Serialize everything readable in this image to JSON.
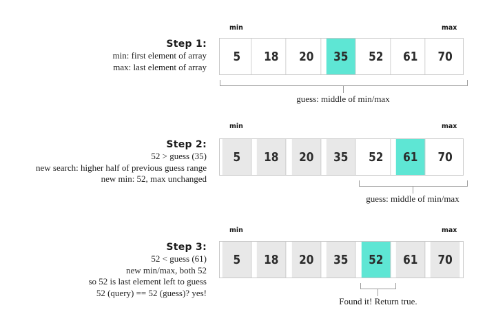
{
  "colors": {
    "guess": "#5ee6d4",
    "greyed": "#e8e8e8",
    "normal": "#ffffff"
  },
  "steps": [
    {
      "title": "Step 1:",
      "lines": [
        "min: first element of array",
        "max: last element of array"
      ],
      "min_label": "min",
      "max_label": "max",
      "values": [
        "5",
        "18",
        "20",
        "35",
        "52",
        "61",
        "70"
      ],
      "states": [
        "normal",
        "normal",
        "normal",
        "guess",
        "normal",
        "normal",
        "normal"
      ],
      "caption": "guess: middle of min/max"
    },
    {
      "title": "Step 2:",
      "lines": [
        "52 > guess (35)",
        "new search: higher half of previous guess range",
        "new min: 52, max unchanged"
      ],
      "min_label": "min",
      "max_label": "max",
      "values": [
        "5",
        "18",
        "20",
        "35",
        "52",
        "61",
        "70"
      ],
      "states": [
        "greyed",
        "greyed",
        "greyed",
        "greyed",
        "normal",
        "guess",
        "normal"
      ],
      "caption": "guess: middle of min/max"
    },
    {
      "title": "Step 3:",
      "lines": [
        "52 < guess (61)",
        "new min/max, both 52",
        "so 52 is last element left to guess",
        "52 (query) == 52 (guess)? yes!"
      ],
      "min_label": "min",
      "max_label": "max",
      "values": [
        "5",
        "18",
        "20",
        "35",
        "52",
        "61",
        "70"
      ],
      "states": [
        "greyed",
        "greyed",
        "greyed",
        "greyed",
        "guess",
        "greyed",
        "greyed"
      ],
      "caption": "Found it!  Return true."
    }
  ]
}
